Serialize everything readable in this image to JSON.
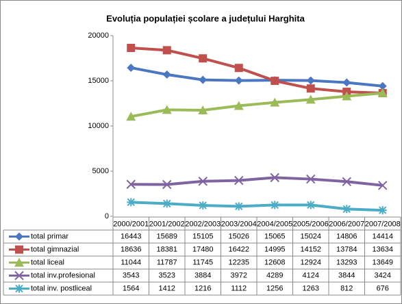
{
  "chart_data": {
    "type": "line",
    "title": "Evoluția populației școlare a județului Harghita",
    "categories": [
      "2000/2001",
      "2001/2002",
      "2002/2003",
      "2003/2004",
      "2004/2005",
      "2005/2006",
      "2006/2007",
      "2007/2008"
    ],
    "ylim": [
      0,
      20000
    ],
    "yticks": [
      0,
      5000,
      10000,
      15000,
      20000
    ],
    "grid": false,
    "series": [
      {
        "name": "total primar",
        "color": "#4a76c2",
        "marker": "diamond",
        "values": [
          16443,
          15689,
          15105,
          15026,
          15065,
          15024,
          14806,
          14414
        ]
      },
      {
        "name": "total gimnazial",
        "color": "#c0504d",
        "marker": "square",
        "values": [
          18636,
          18381,
          17480,
          16422,
          14995,
          14152,
          13784,
          13634
        ]
      },
      {
        "name": "total liceal",
        "color": "#9bbb59",
        "marker": "triangle",
        "values": [
          11044,
          11787,
          11745,
          12235,
          12608,
          12924,
          13293,
          13649
        ]
      },
      {
        "name": "total inv.profesional",
        "color": "#8064a2",
        "marker": "x",
        "values": [
          3543,
          3523,
          3884,
          3972,
          4289,
          4124,
          3844,
          3424
        ]
      },
      {
        "name": "total inv. postliceal",
        "color": "#4bacc6",
        "marker": "star",
        "values": [
          1564,
          1412,
          1216,
          1112,
          1256,
          1263,
          812,
          676
        ]
      }
    ]
  }
}
